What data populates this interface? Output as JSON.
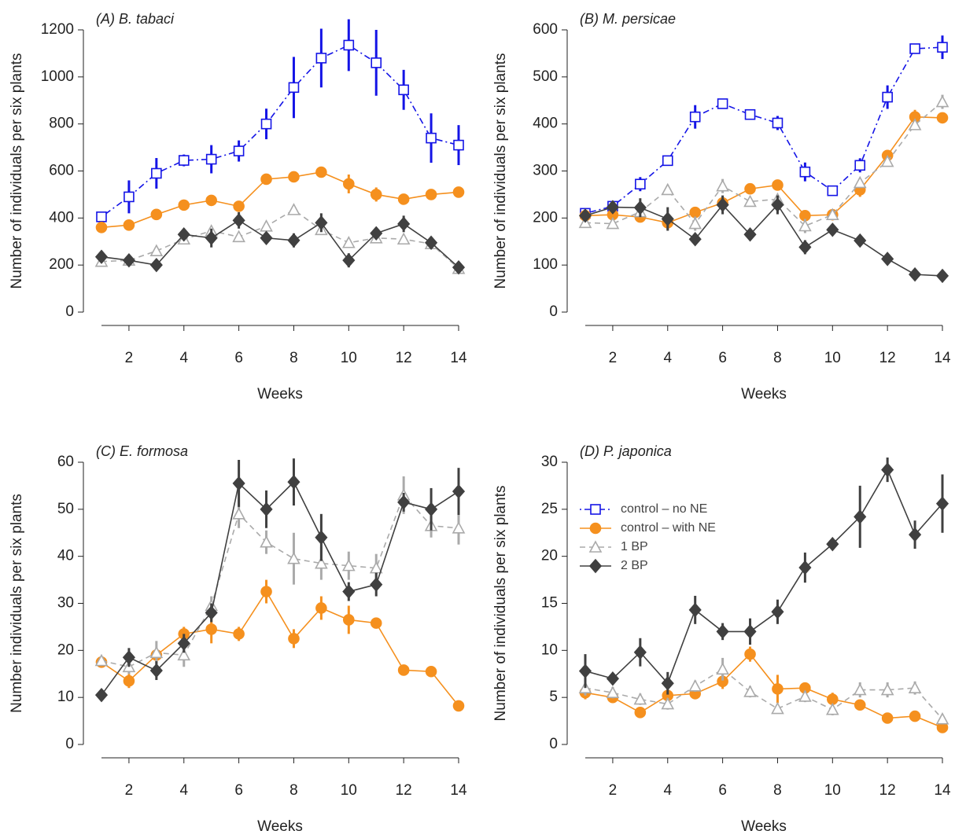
{
  "chart_data": [
    {
      "type": "line",
      "title": "(A) B. tabaci",
      "x_label": "Weeks",
      "y_label": "Number of individuals per six plants",
      "x": [
        1,
        2,
        3,
        4,
        5,
        6,
        7,
        8,
        9,
        10,
        11,
        12,
        13,
        14
      ],
      "xlim": [
        1,
        14
      ],
      "xticks": [
        2,
        4,
        6,
        8,
        10,
        12,
        14
      ],
      "ylim": [
        0,
        1200
      ],
      "yticks": [
        0,
        200,
        400,
        600,
        800,
        1000,
        1200
      ],
      "legend": false,
      "series": [
        {
          "name": "control – no NE",
          "color": "#1414e6",
          "marker": "square",
          "dash": "dotdash",
          "values": [
            405,
            490,
            590,
            645,
            650,
            685,
            800,
            955,
            1080,
            1135,
            1060,
            945,
            740,
            710
          ],
          "errors": [
            10,
            70,
            65,
            25,
            60,
            45,
            65,
            130,
            125,
            110,
            140,
            85,
            105,
            85
          ]
        },
        {
          "name": "control – with NE",
          "color": "#f5901e",
          "marker": "circle",
          "dash": "solid",
          "values": [
            360,
            370,
            415,
            455,
            475,
            450,
            565,
            575,
            595,
            545,
            500,
            480,
            500,
            510
          ],
          "errors": [
            10,
            10,
            10,
            15,
            15,
            15,
            15,
            15,
            15,
            40,
            30,
            15,
            15,
            15
          ]
        },
        {
          "name": "1 BP",
          "color": "#aaaaaa",
          "marker": "triangle",
          "dash": "dashed",
          "values": [
            215,
            220,
            260,
            310,
            345,
            320,
            365,
            435,
            350,
            295,
            315,
            310,
            290,
            185
          ],
          "errors": [
            10,
            10,
            15,
            15,
            15,
            15,
            15,
            15,
            15,
            15,
            15,
            15,
            15,
            10
          ]
        },
        {
          "name": "2 BP",
          "color": "#404040",
          "marker": "diamond",
          "dash": "solid",
          "values": [
            235,
            220,
            200,
            330,
            315,
            390,
            315,
            305,
            380,
            220,
            335,
            375,
            295,
            190
          ],
          "errors": [
            15,
            15,
            15,
            25,
            40,
            35,
            20,
            30,
            40,
            30,
            25,
            35,
            25,
            15
          ]
        }
      ]
    },
    {
      "type": "line",
      "title": "(B) M. persicae",
      "x_label": "Weeks",
      "y_label": "Number of individuals per six plants",
      "x": [
        1,
        2,
        3,
        4,
        5,
        6,
        7,
        8,
        9,
        10,
        11,
        12,
        13,
        14
      ],
      "xlim": [
        1,
        14
      ],
      "xticks": [
        2,
        4,
        6,
        8,
        10,
        12,
        14
      ],
      "ylim": [
        0,
        600
      ],
      "yticks": [
        0,
        100,
        200,
        300,
        400,
        500,
        600
      ],
      "legend": false,
      "series": [
        {
          "name": "control – no NE",
          "color": "#1414e6",
          "marker": "square",
          "dash": "dotdash",
          "values": [
            210,
            225,
            272,
            322,
            415,
            443,
            420,
            402,
            298,
            258,
            312,
            457,
            560,
            563
          ],
          "errors": [
            5,
            5,
            15,
            10,
            25,
            10,
            10,
            15,
            20,
            10,
            15,
            25,
            10,
            25
          ]
        },
        {
          "name": "control – with NE",
          "color": "#f5901e",
          "marker": "circle",
          "dash": "solid",
          "values": [
            205,
            207,
            202,
            190,
            212,
            232,
            262,
            270,
            205,
            207,
            260,
            333,
            415,
            413
          ],
          "errors": [
            10,
            10,
            10,
            15,
            10,
            10,
            10,
            10,
            10,
            10,
            15,
            10,
            15,
            10
          ]
        },
        {
          "name": "1 BP",
          "color": "#aaaaaa",
          "marker": "triangle",
          "dash": "dashed",
          "values": [
            190,
            188,
            213,
            260,
            188,
            268,
            235,
            240,
            183,
            207,
            275,
            320,
            398,
            447
          ],
          "errors": [
            10,
            10,
            10,
            10,
            15,
            15,
            10,
            10,
            15,
            10,
            10,
            10,
            10,
            15
          ]
        },
        {
          "name": "2 BP",
          "color": "#404040",
          "marker": "diamond",
          "dash": "solid",
          "values": [
            205,
            223,
            222,
            198,
            155,
            228,
            165,
            228,
            138,
            175,
            152,
            113,
            80,
            77
          ],
          "errors": [
            10,
            10,
            20,
            25,
            10,
            20,
            10,
            20,
            15,
            10,
            10,
            5,
            5,
            5
          ]
        }
      ]
    },
    {
      "type": "line",
      "title": "(C) E. formosa",
      "x_label": "Weeks",
      "y_label": "Number individuals per six plants",
      "x": [
        1,
        2,
        3,
        4,
        5,
        6,
        7,
        8,
        9,
        10,
        11,
        12,
        13,
        14
      ],
      "xlim": [
        1,
        14
      ],
      "xticks": [
        2,
        4,
        6,
        8,
        10,
        12,
        14
      ],
      "ylim": [
        0,
        60
      ],
      "yticks": [
        0,
        10,
        20,
        30,
        40,
        50,
        60
      ],
      "legend": false,
      "series": [
        {
          "name": "control – with NE",
          "color": "#f5901e",
          "marker": "circle",
          "dash": "solid",
          "values": [
            17.5,
            13.5,
            19,
            23.5,
            24.5,
            23.5,
            32.5,
            22.5,
            29,
            26.5,
            25.8,
            15.8,
            15.5,
            8.2
          ],
          "errors": [
            1,
            1.5,
            1.5,
            1.5,
            3,
            1.5,
            2.5,
            2,
            2.5,
            3,
            1,
            1,
            1,
            0.8
          ]
        },
        {
          "name": "1 BP",
          "color": "#aaaaaa",
          "marker": "triangle",
          "dash": "dashed",
          "values": [
            17.8,
            16.5,
            19.5,
            19,
            29.5,
            49,
            43,
            39.5,
            38.5,
            38,
            37.5,
            53,
            46.5,
            46
          ],
          "errors": [
            1,
            1.5,
            2.5,
            2.5,
            2,
            3,
            2.5,
            5.5,
            3.5,
            3,
            3,
            4,
            2.5,
            3.5
          ]
        },
        {
          "name": "2 BP",
          "color": "#404040",
          "marker": "diamond",
          "dash": "solid",
          "values": [
            10.5,
            18.5,
            15.7,
            21.5,
            28,
            55.5,
            50,
            55.8,
            44,
            32.5,
            34,
            51.5,
            50,
            53.8
          ],
          "errors": [
            0.5,
            2,
            2,
            2,
            2,
            5,
            4,
            5,
            5,
            2,
            2.5,
            2,
            4.5,
            5
          ]
        }
      ]
    },
    {
      "type": "line",
      "title": "(D) P. japonica",
      "x_label": "Weeks",
      "y_label": "Number of individuals per six plants",
      "x": [
        1,
        2,
        3,
        4,
        5,
        6,
        7,
        8,
        9,
        10,
        11,
        12,
        13,
        14
      ],
      "xlim": [
        1,
        14
      ],
      "xticks": [
        2,
        4,
        6,
        8,
        10,
        12,
        14
      ],
      "ylim": [
        0,
        30
      ],
      "yticks": [
        0,
        5,
        10,
        15,
        20,
        25,
        30
      ],
      "legend": true,
      "series": [
        {
          "name": "control – no NE",
          "color": "#1414e6",
          "marker": "square",
          "dash": "dotdash",
          "values": [
            null,
            null,
            null,
            null,
            null,
            null,
            null,
            null,
            null,
            null,
            null,
            null,
            null,
            null
          ],
          "errors": [
            null,
            null,
            null,
            null,
            null,
            null,
            null,
            null,
            null,
            null,
            null,
            null,
            null,
            null
          ]
        },
        {
          "name": "control – with NE",
          "color": "#f5901e",
          "marker": "circle",
          "dash": "solid",
          "values": [
            5.5,
            5,
            3.4,
            5.2,
            5.4,
            6.7,
            9.6,
            5.9,
            6,
            4.8,
            4.2,
            2.8,
            3,
            1.8
          ],
          "errors": [
            0.7,
            0.5,
            0.4,
            0.6,
            0.6,
            0.8,
            0.8,
            1.5,
            0.6,
            0.7,
            0.4,
            0.4,
            0.4,
            0.4
          ]
        },
        {
          "name": "1 BP",
          "color": "#aaaaaa",
          "marker": "triangle",
          "dash": "dashed",
          "values": [
            6,
            5.5,
            4.8,
            4.3,
            6.2,
            8,
            5.6,
            3.8,
            5.1,
            3.7,
            5.8,
            5.8,
            6,
            2.7
          ],
          "errors": [
            0.8,
            0.6,
            0.6,
            0.6,
            0.6,
            1.2,
            0.6,
            0.5,
            0.6,
            0.6,
            0.8,
            0.8,
            0.7,
            0.5
          ]
        },
        {
          "name": "2 BP",
          "color": "#404040",
          "marker": "diamond",
          "dash": "solid",
          "values": [
            7.8,
            7,
            9.8,
            6.5,
            14.3,
            12,
            12,
            14.1,
            18.8,
            21.3,
            24.2,
            29.2,
            22.3,
            25.6
          ],
          "errors": [
            1.8,
            0.6,
            1.5,
            1.2,
            1.5,
            0.9,
            1.4,
            1.3,
            1.6,
            0.6,
            3.3,
            1.3,
            1.5,
            3.1
          ]
        }
      ]
    }
  ]
}
